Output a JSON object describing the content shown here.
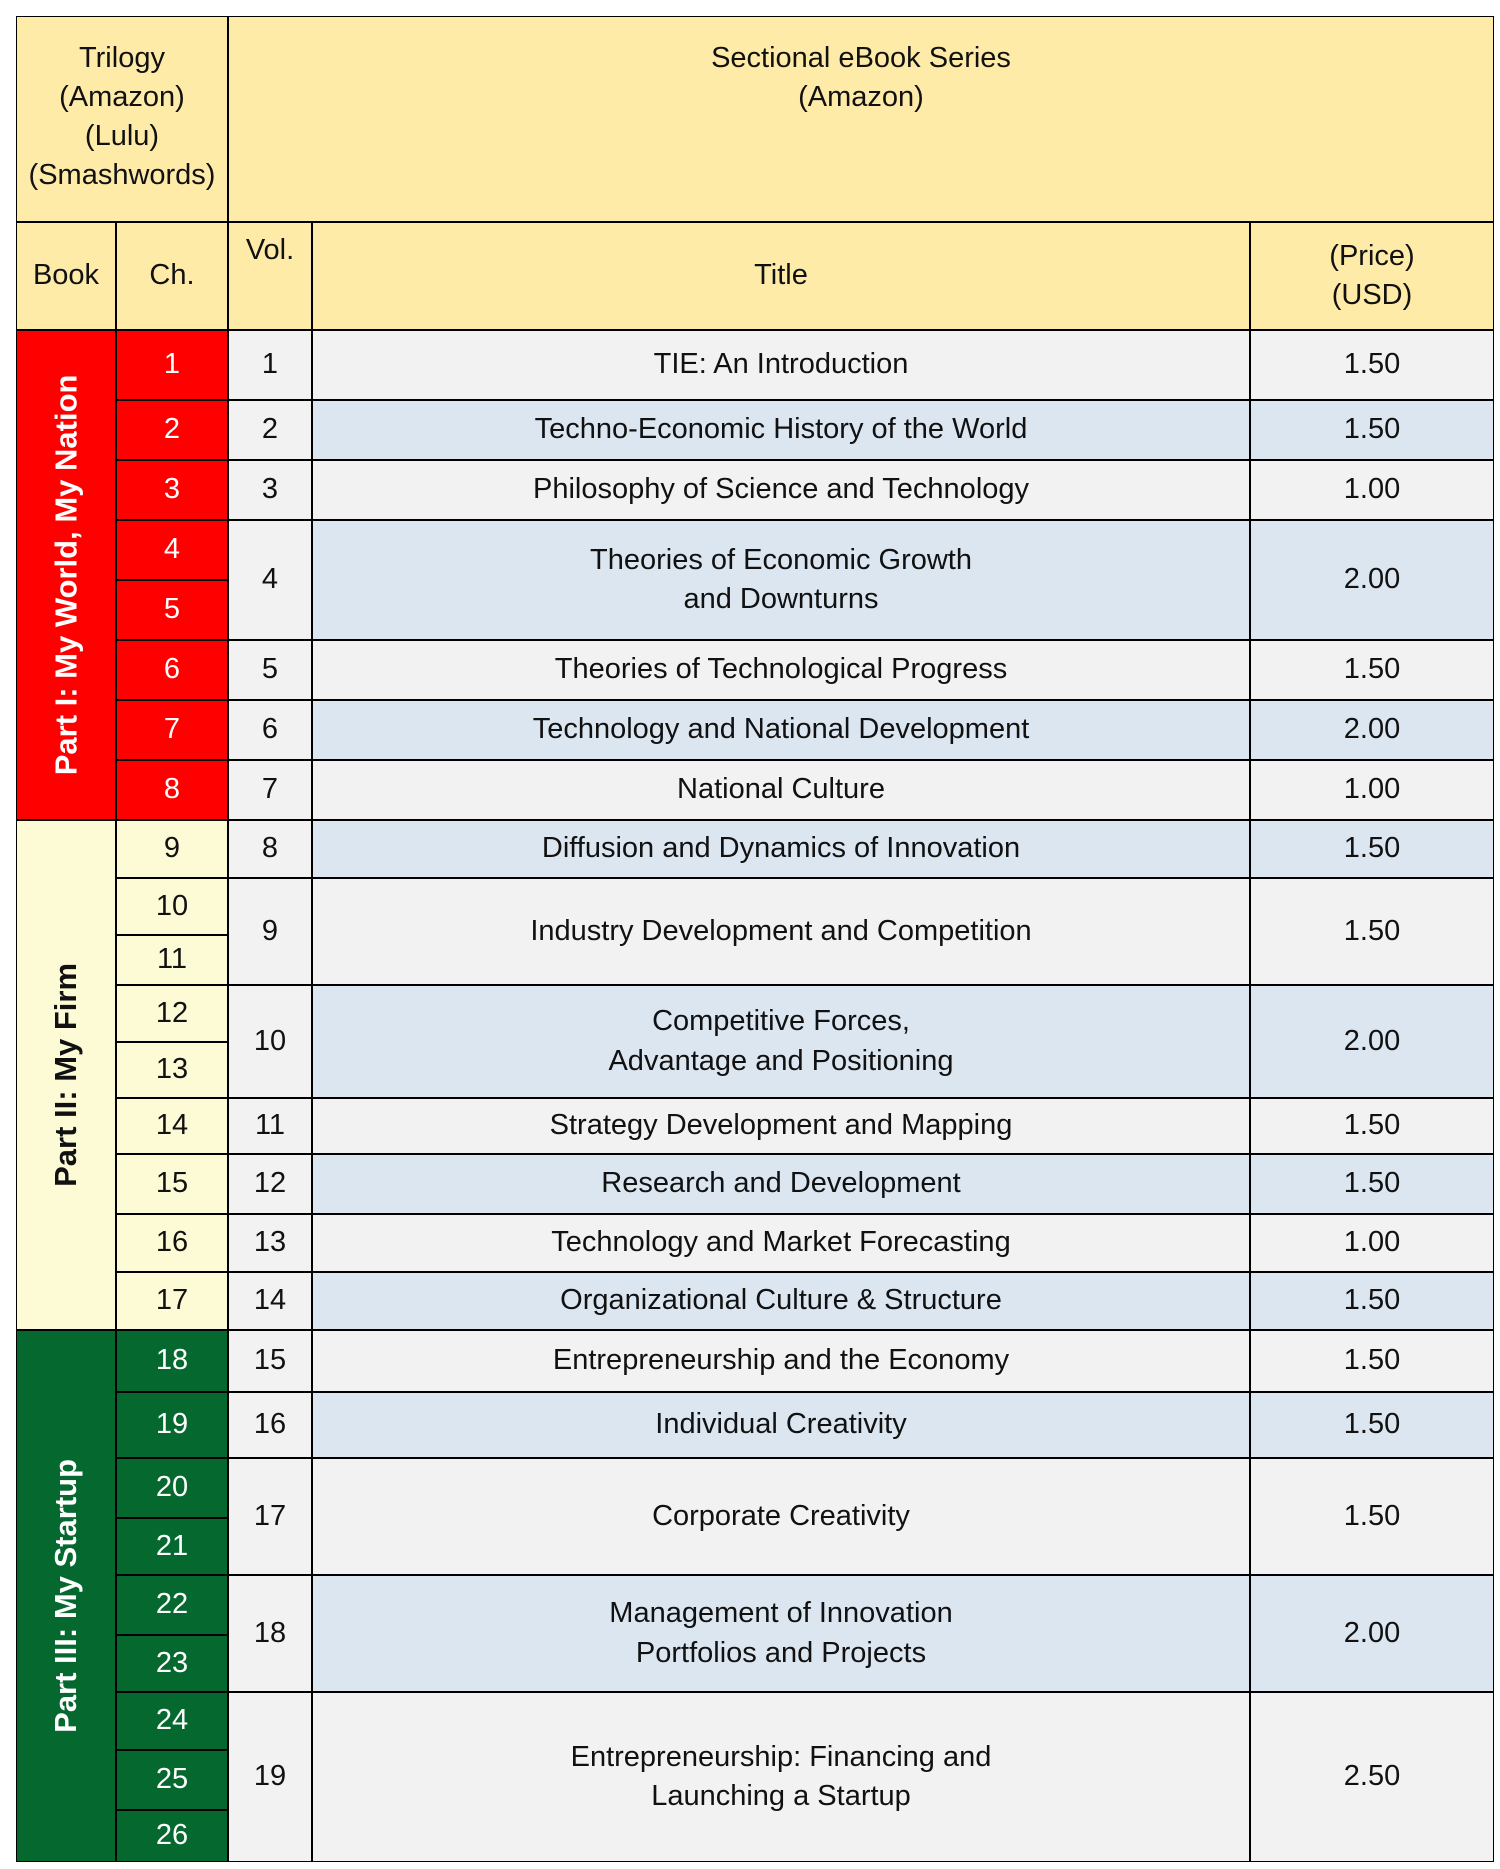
{
  "header": {
    "trilogy": "Trilogy\n(Amazon)\n(Lulu)\n(Smashwords)",
    "sectional": "Sectional eBook Series\n(Amazon)",
    "columns": {
      "book": "Book",
      "chapter": "Ch.",
      "volume": "Vol.",
      "title": "Title",
      "price": "(Price)\n(USD)"
    }
  },
  "books": [
    {
      "label": "Part I: My World, My Nation",
      "color": "#FF0000"
    },
    {
      "label": "Part II: My Firm",
      "color": "#FDFBD6"
    },
    {
      "label": "Part III: My Startup",
      "color": "#05692F"
    }
  ],
  "chapters": [
    "1",
    "2",
    "3",
    "4",
    "5",
    "6",
    "7",
    "8",
    "9",
    "10",
    "11",
    "12",
    "13",
    "14",
    "15",
    "16",
    "17",
    "18",
    "19",
    "20",
    "21",
    "22",
    "23",
    "24",
    "25",
    "26"
  ],
  "volumes": [
    {
      "vol": "1",
      "title": "TIE: An Introduction",
      "price": "1.50"
    },
    {
      "vol": "2",
      "title": "Techno-Economic History of the World",
      "price": "1.50"
    },
    {
      "vol": "3",
      "title": "Philosophy of Science and Technology",
      "price": "1.00"
    },
    {
      "vol": "4",
      "title": "Theories of Economic Growth\nand Downturns",
      "price": "2.00"
    },
    {
      "vol": "5",
      "title": "Theories of Technological Progress",
      "price": "1.50"
    },
    {
      "vol": "6",
      "title": "Technology and National Development",
      "price": "2.00"
    },
    {
      "vol": "7",
      "title": "National Culture",
      "price": "1.00"
    },
    {
      "vol": "8",
      "title": "Diffusion and Dynamics of Innovation",
      "price": "1.50"
    },
    {
      "vol": "9",
      "title": "Industry Development and Competition",
      "price": "1.50"
    },
    {
      "vol": "10",
      "title": "Competitive Forces,\nAdvantage and Positioning",
      "price": "2.00"
    },
    {
      "vol": "11",
      "title": "Strategy Development and Mapping",
      "price": "1.50"
    },
    {
      "vol": "12",
      "title": "Research and Development",
      "price": "1.50"
    },
    {
      "vol": "13",
      "title": "Technology and Market Forecasting",
      "price": "1.00"
    },
    {
      "vol": "14",
      "title": "Organizational Culture & Structure",
      "price": "1.50"
    },
    {
      "vol": "15",
      "title": "Entrepreneurship and the Economy",
      "price": "1.50"
    },
    {
      "vol": "16",
      "title": "Individual Creativity",
      "price": "1.50"
    },
    {
      "vol": "17",
      "title": "Corporate Creativity",
      "price": "1.50"
    },
    {
      "vol": "18",
      "title": "Management of Innovation\nPortfolios and Projects",
      "price": "2.00"
    },
    {
      "vol": "19",
      "title": "Entrepreneurship: Financing and\nLaunching a Startup",
      "price": "2.50"
    }
  ],
  "colors": {
    "header": "#FFEBA8",
    "row_light": "#F2F2F2",
    "row_blue": "#DCE6F1",
    "part1": "#FF0000",
    "part2": "#FDFBD6",
    "part3": "#05692F"
  }
}
